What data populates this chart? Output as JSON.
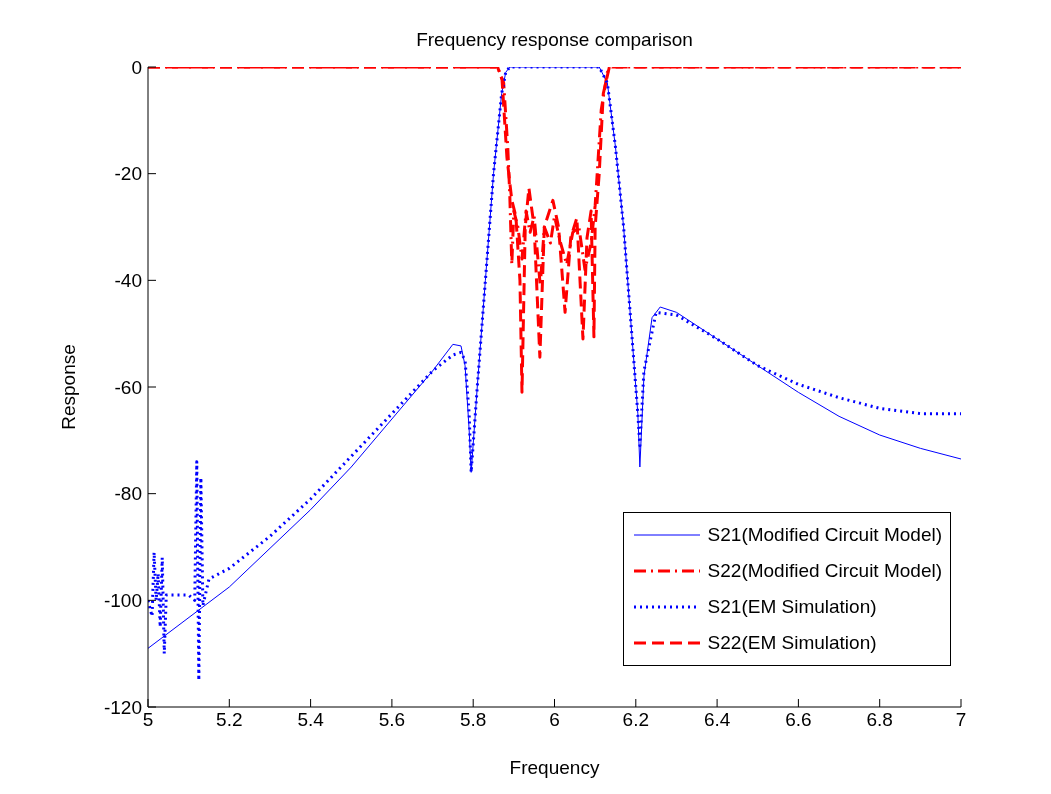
{
  "chart_data": {
    "type": "line",
    "title": "Frequency response comparison",
    "xlabel": "Frequency",
    "ylabel": "Response",
    "xlim": [
      5,
      7
    ],
    "xticks": [
      5,
      5.2,
      5.4,
      5.6,
      5.8,
      6,
      6.2,
      6.4,
      6.6,
      6.8,
      7
    ],
    "ylim": [
      -120,
      0
    ],
    "yticks": [
      -120,
      -100,
      -80,
      -60,
      -40,
      -20,
      0
    ],
    "grid": false,
    "legend": "bottom right",
    "marker": "none",
    "series": [
      {
        "name": "S21(Modified Circuit Model)",
        "color": "#0000ff",
        "line_style": "solid",
        "x": [
          5,
          5.2,
          5.4,
          5.5,
          5.6,
          5.7,
          5.75,
          5.77,
          5.78,
          5.79,
          5.795,
          5.81,
          5.83,
          5.85,
          5.87,
          5.88,
          5.89,
          6.11,
          6.13,
          6.15,
          6.17,
          6.19,
          6.205,
          6.21,
          6.22,
          6.24,
          6.26,
          6.3,
          6.4,
          6.5,
          6.6,
          6.7,
          6.8,
          6.9,
          7
        ],
        "values": [
          -109,
          -97.5,
          -83,
          -75,
          -66,
          -57,
          -52,
          -52.3,
          -56,
          -68,
          -76,
          -60,
          -40,
          -20,
          -5,
          -1,
          0,
          0,
          -3,
          -15,
          -30,
          -50,
          -65,
          -75,
          -58,
          -47,
          -45,
          -46,
          -51,
          -56,
          -61,
          -65.5,
          -69,
          -71.5,
          -73.5
        ]
      },
      {
        "name": "S22(Modified Circuit Model)",
        "color": "#ff0000",
        "line_style": "dashdot",
        "x": [
          5,
          5.86,
          5.875,
          5.885,
          5.89,
          5.895,
          5.9,
          5.91,
          5.92,
          5.93,
          5.94,
          5.95,
          5.965,
          5.975,
          5.99,
          6.0,
          6.015,
          6.03,
          6.045,
          6.06,
          6.075,
          6.09,
          6.1,
          6.115,
          6.13,
          6.14,
          7
        ],
        "values": [
          0,
          0,
          -3,
          -15,
          -24,
          -37,
          -27,
          -30,
          -36,
          -27,
          -31,
          -28,
          -41,
          -30,
          -33,
          -28,
          -33,
          -37,
          -31,
          -30,
          -38,
          -33,
          -26,
          -8,
          -1,
          0,
          0
        ]
      },
      {
        "name": "S21(EM Simulation)",
        "color": "#0000ff",
        "line_style": "dotted",
        "x": [
          5,
          5.01,
          5.015,
          5.02,
          5.025,
          5.03,
          5.035,
          5.04,
          5.045,
          5.06,
          5.1,
          5.115,
          5.12,
          5.125,
          5.13,
          5.135,
          5.15,
          5.2,
          5.25,
          5.3,
          5.4,
          5.5,
          5.6,
          5.7,
          5.75,
          5.77,
          5.78,
          5.79,
          5.795,
          5.81,
          5.83,
          5.85,
          5.87,
          5.88,
          5.89,
          6.11,
          6.13,
          6.15,
          6.17,
          6.19,
          6.205,
          6.21,
          6.22,
          6.25,
          6.3,
          6.4,
          6.5,
          6.6,
          6.7,
          6.8,
          6.9,
          7
        ],
        "values": [
          -100,
          -103,
          -91,
          -100,
          -95,
          -105,
          -92,
          -110,
          -99,
          -99,
          -99,
          -100,
          -74,
          -115,
          -77,
          -101,
          -96,
          -94,
          -91,
          -88,
          -81,
          -73,
          -65,
          -57,
          -54,
          -53.5,
          -55,
          -65,
          -76,
          -60,
          -40,
          -20,
          -5,
          -1,
          0,
          0,
          -3,
          -15,
          -30,
          -50,
          -65,
          -71,
          -57,
          -46,
          -46.5,
          -51,
          -56,
          -59.5,
          -62,
          -64,
          -65,
          -65
        ]
      },
      {
        "name": "S22(EM Simulation)",
        "color": "#ff0000",
        "line_style": "dashed",
        "x": [
          5,
          5.86,
          5.871,
          5.883,
          5.895,
          5.905,
          5.915,
          5.92,
          5.928,
          5.937,
          5.95,
          5.964,
          5.975,
          5.996,
          6.01,
          6.026,
          6.04,
          6.055,
          6.07,
          6.08,
          6.09,
          6.097,
          6.1,
          6.11,
          6.12,
          6.135,
          7
        ],
        "values": [
          0,
          0,
          -2.4,
          -17,
          -25,
          -28,
          -40,
          -61,
          -30,
          -22.7,
          -30,
          -54.4,
          -30,
          -25,
          -30,
          -46,
          -32,
          -28.3,
          -51,
          -32,
          -27,
          -50.6,
          -30,
          -20,
          -5,
          0,
          0
        ]
      }
    ]
  }
}
